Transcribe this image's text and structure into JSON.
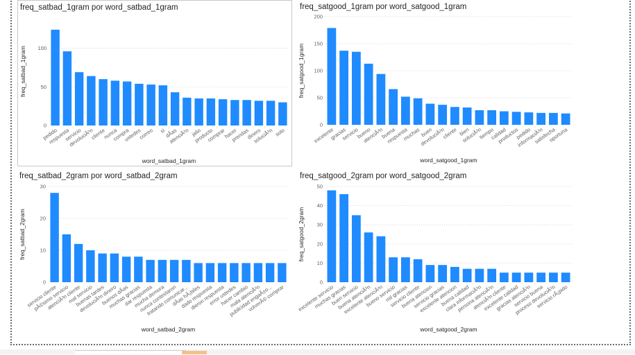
{
  "charts": [
    {
      "id": "satbad1",
      "title": "freq_satbad_1gram por word_satbad_1gram",
      "xlabel": "word_satbad_1gram",
      "ylabel": "freq_satbad_1gram",
      "chart_data": {
        "type": "bar",
        "categories": [
          "pedido",
          "respuesta",
          "servicio",
          "devoluciÃ³n",
          "cliente",
          "nunca",
          "compra",
          "ustedes",
          "correo",
          "si",
          "dÃ­as",
          "atenciÃ³n",
          "jalio",
          "producto",
          "comprar",
          "hacer",
          "prendas",
          "dinero",
          "soluciÃ³n",
          "solo"
        ],
        "values": [
          124,
          96,
          69,
          64,
          60,
          58,
          57,
          54,
          53,
          52,
          43,
          36,
          35,
          35,
          34,
          33,
          33,
          32,
          32,
          30
        ],
        "ylim": [
          0,
          140
        ],
        "yticks": [
          0,
          50,
          100
        ]
      }
    },
    {
      "id": "satgood1",
      "title": "freq_satgood_1gram por word_satgood_1gram",
      "xlabel": "word_satgood_1gram",
      "ylabel": "freq_satgood_1gram",
      "chart_data": {
        "type": "bar",
        "categories": [
          "excelente",
          "gracias",
          "servicio",
          "bueno",
          "atenciÃ³n",
          "buena",
          "respuesta",
          "muchas",
          "buen",
          "devoluciÃ³n",
          "cliente",
          "bien",
          "soluciÃ³n",
          "tiempo",
          "calidad",
          "productos",
          "pedido",
          "informaciÃ³n",
          "satisfecha",
          "oportuna"
        ],
        "values": [
          179,
          137,
          135,
          113,
          94,
          66,
          52,
          49,
          39,
          37,
          33,
          32,
          27,
          27,
          25,
          24,
          23,
          22,
          22,
          21
        ],
        "ylim": [
          0,
          200
        ],
        "yticks": [
          0,
          50,
          100,
          150,
          200
        ]
      }
    },
    {
      "id": "satbad2",
      "title": "freq_satbad_2gram por word_satbad_2gram",
      "xlabel": "word_satbad_2gram",
      "ylabel": "freq_satbad_2gram",
      "chart_data": {
        "type": "bar",
        "categories": [
          "servicio cliente",
          "pÃ©simo servicio",
          "atenciÃ³n cliente",
          "mal servicio",
          "buenas tardes",
          "devoluciÃ³n dinero",
          "buenos dÃ­as",
          "muchas gracias",
          "dar respuesta",
          "mucha demora",
          "nunca contestaron",
          "tratando comunicar...",
          "dÃ­as hÃ¡biles",
          "dado respuesta",
          "dieron respuesta",
          "error ustedes",
          "hacer cambio",
          "mala atenciÃ³n",
          "publicidad engaÃ±o...",
          "volverÃ© comprar"
        ],
        "values": [
          28,
          15,
          12,
          10,
          9,
          9,
          8,
          8,
          7,
          7,
          7,
          7,
          6,
          6,
          6,
          6,
          6,
          6,
          6,
          6
        ],
        "ylim": [
          0,
          30
        ],
        "yticks": [
          0,
          10,
          20,
          30
        ]
      }
    },
    {
      "id": "satgood2",
      "title": "freq_satgood_2gram por word_satgood_2gram",
      "xlabel": "word_satgood_2gram",
      "ylabel": "freq_satgood_2gram",
      "chart_data": {
        "type": "bar",
        "categories": [
          "excelente servicio",
          "muchas gracias",
          "buen servicio",
          "buena atenciÃ³n",
          "excelente atenciÃ³n",
          "bueno servicio",
          "mil gracias",
          "servicio cliente",
          "buena atencion",
          "servicio gracias",
          "excelente atencion",
          "buena calidad",
          "clara informaciÃ³n",
          "persona atenciÃ³n",
          "atenciÃ³n cliente",
          "excelente calidad",
          "gracias atenciÃ³n",
          "servicio buena",
          "proceso devoluciÃ³n",
          "servicio rÃ¡pido"
        ],
        "values": [
          48,
          46,
          35,
          26,
          24,
          13,
          13,
          12,
          9,
          9,
          8,
          7,
          7,
          7,
          5,
          5,
          5,
          5,
          5,
          5
        ],
        "ylim": [
          0,
          50
        ],
        "yticks": [
          0,
          10,
          20,
          30,
          40,
          50
        ]
      }
    }
  ]
}
